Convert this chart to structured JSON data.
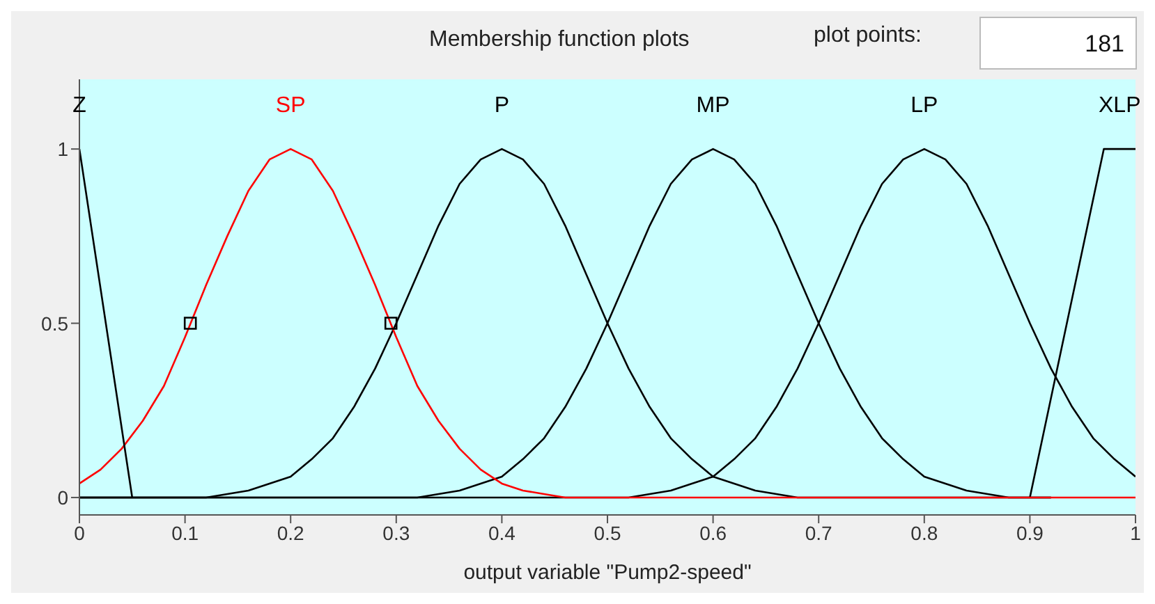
{
  "chart_data": {
    "type": "line",
    "title": "Membership function plots",
    "xlabel": "output variable \"Pump2-speed\"",
    "annotations": [
      "plot points:",
      "181"
    ],
    "x": [
      0,
      0.02,
      0.04,
      0.06,
      0.08,
      0.1,
      0.12,
      0.14,
      0.16,
      0.18,
      0.2,
      0.22,
      0.24,
      0.26,
      0.28,
      0.3,
      0.32,
      0.34,
      0.36,
      0.38,
      0.4,
      0.42,
      0.44,
      0.46,
      0.48,
      0.5,
      0.52,
      0.54,
      0.56,
      0.58,
      0.6,
      0.62,
      0.64,
      0.66,
      0.68,
      0.7,
      0.72,
      0.74,
      0.76,
      0.78,
      0.8,
      0.82,
      0.84,
      0.86,
      0.88,
      0.9,
      0.92,
      0.94,
      0.96,
      0.98,
      1
    ],
    "series": [
      {
        "name": "Z",
        "color": "#000000",
        "x": [
          0,
          0.05
        ],
        "values": [
          1,
          0
        ]
      },
      {
        "name": "SP",
        "color": "#ff0000",
        "values": [
          0.04,
          0.08,
          0.14,
          0.22,
          0.32,
          0.46,
          0.61,
          0.75,
          0.88,
          0.97,
          1,
          0.97,
          0.88,
          0.75,
          0.61,
          0.46,
          0.32,
          0.22,
          0.14,
          0.08,
          0.04,
          0.02,
          0.01,
          0,
          0,
          0,
          0,
          0,
          0,
          0,
          0,
          0,
          0,
          0,
          0,
          0,
          0,
          0,
          0,
          0,
          0,
          0,
          0,
          0,
          0,
          0,
          0,
          0,
          0,
          0,
          0
        ]
      },
      {
        "name": "P",
        "color": "#000000",
        "values": [
          0,
          0,
          0,
          0,
          0,
          0,
          0,
          0.01,
          0.02,
          0.04,
          0.06,
          0.11,
          0.17,
          0.26,
          0.37,
          0.5,
          0.64,
          0.78,
          0.9,
          0.97,
          1,
          0.97,
          0.9,
          0.78,
          0.64,
          0.5,
          0.37,
          0.26,
          0.17,
          0.11,
          0.06,
          0.04,
          0.02,
          0.01,
          0,
          0,
          0,
          0,
          0,
          0,
          0,
          0,
          0,
          0,
          0,
          0,
          0,
          null,
          null,
          null,
          null
        ]
      },
      {
        "name": "MP",
        "color": "#000000",
        "values": [
          0,
          0,
          0,
          0,
          0,
          0,
          0,
          0,
          0,
          0,
          0,
          0,
          0,
          0,
          0,
          0,
          0,
          0.01,
          0.02,
          0.04,
          0.06,
          0.11,
          0.17,
          0.26,
          0.37,
          0.5,
          0.64,
          0.78,
          0.9,
          0.97,
          1,
          0.97,
          0.9,
          0.78,
          0.64,
          0.5,
          0.37,
          0.26,
          0.17,
          0.11,
          0.06,
          0.04,
          0.02,
          0.01,
          0,
          0,
          0,
          null,
          null,
          null,
          null
        ]
      },
      {
        "name": "LP",
        "color": "#000000",
        "values": [
          0,
          0,
          0,
          0,
          0,
          0,
          0,
          0,
          0,
          0,
          0,
          0,
          0,
          0,
          0,
          0,
          0,
          0,
          0,
          0,
          0,
          0,
          0,
          0,
          0,
          0,
          0,
          0.01,
          0.02,
          0.04,
          0.06,
          0.11,
          0.17,
          0.26,
          0.37,
          0.5,
          0.64,
          0.78,
          0.9,
          0.97,
          1,
          0.97,
          0.9,
          0.78,
          0.64,
          0.5,
          0.37,
          0.26,
          0.17,
          0.11,
          0.06
        ]
      },
      {
        "name": "XLP",
        "color": "#000000",
        "x": [
          0.9,
          0.97,
          1
        ],
        "values": [
          0,
          1,
          1
        ]
      },
      {
        "type": "scatter",
        "color": "#000000",
        "marker": "square",
        "x": [
          0.105,
          0.295
        ],
        "values": [
          0.5,
          0.5
        ]
      }
    ],
    "xlim": [
      0,
      1
    ],
    "xticks": [
      0,
      0.1,
      0.2,
      0.3,
      0.4,
      0.5,
      0.6,
      0.7,
      0.8,
      0.9,
      1
    ],
    "ylim": [
      -0.05,
      1.2
    ],
    "yticks": [
      0,
      0.5,
      1
    ],
    "marker": "none",
    "line_style": "solid",
    "grid": false
  }
}
